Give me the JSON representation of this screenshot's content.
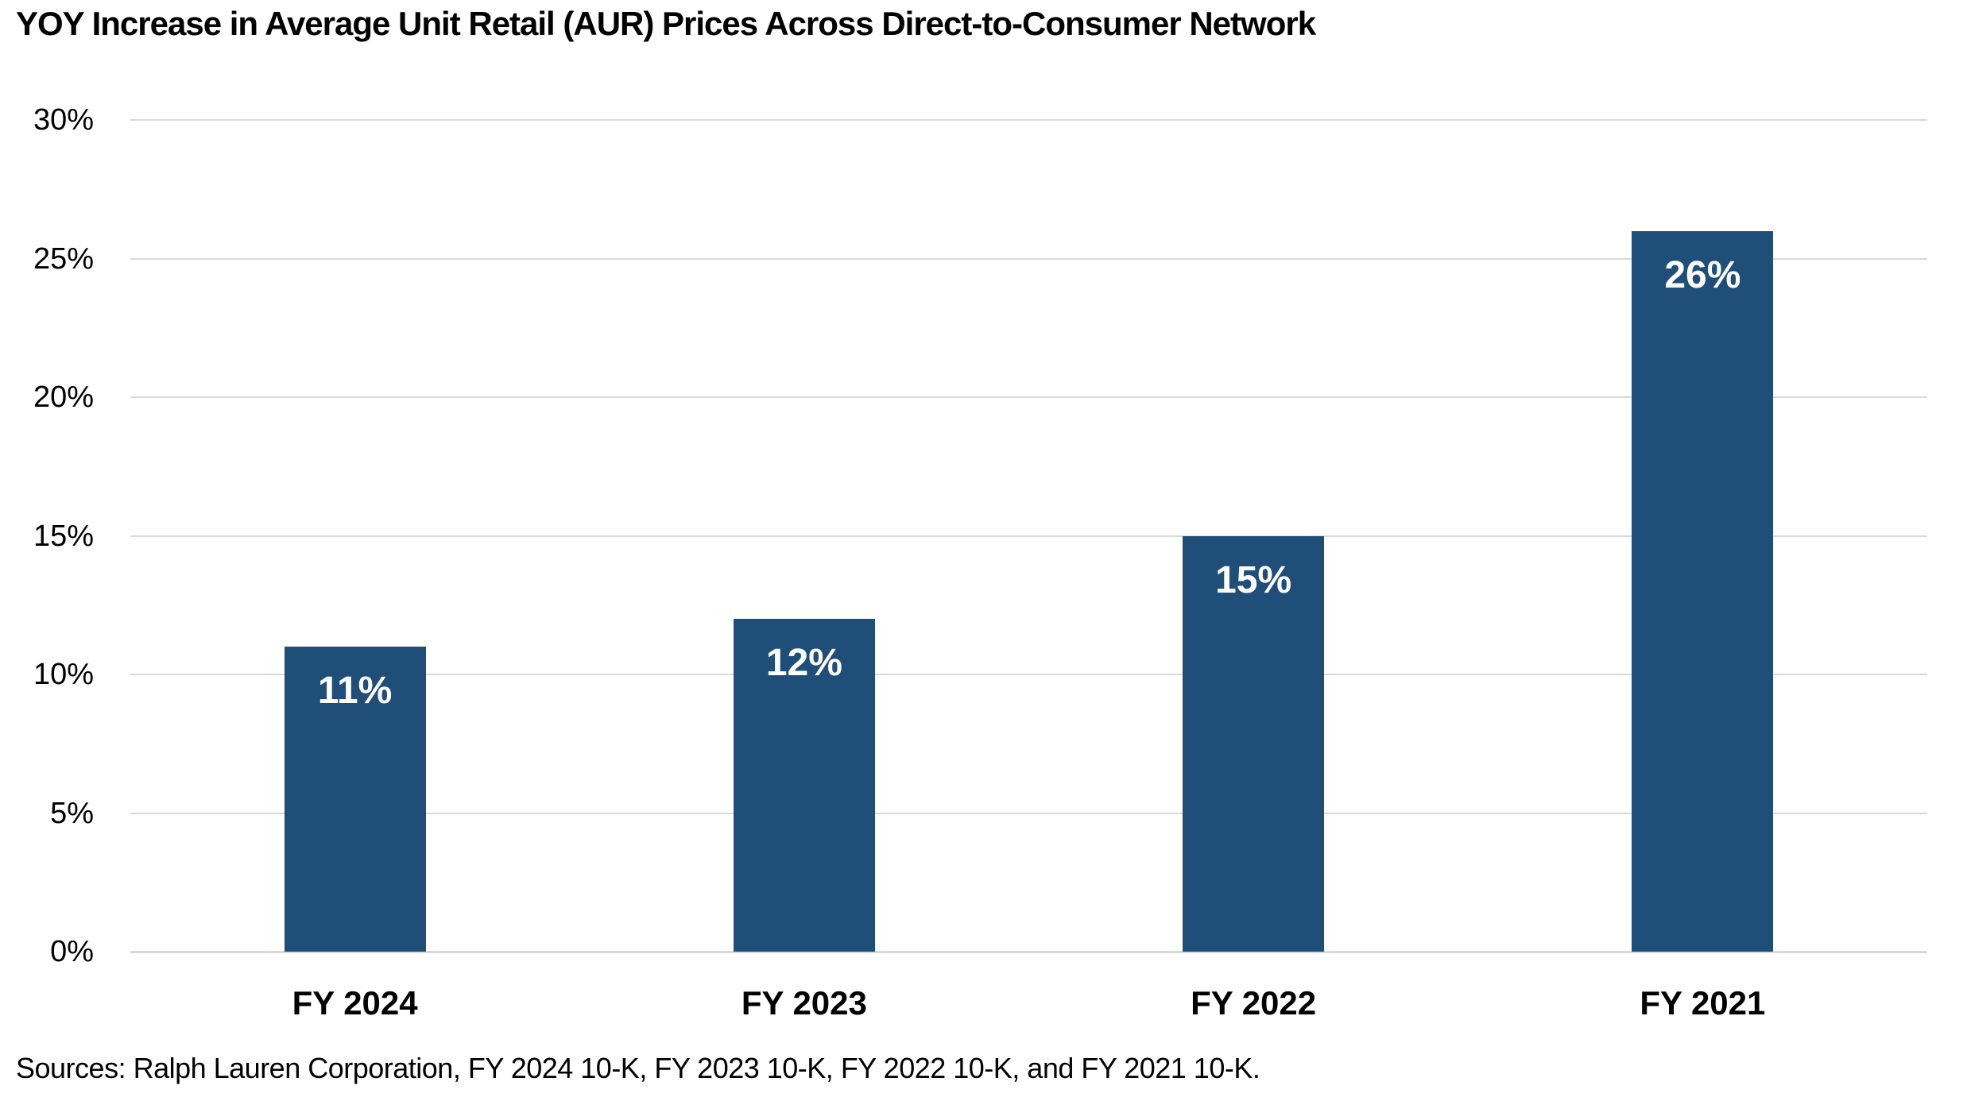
{
  "title": "YOY Increase in Average Unit Retail (AUR) Prices Across Direct-to-Consumer Network",
  "source_note": "Sources: Ralph Lauren Corporation, FY 2024 10-K, FY 2023 10-K, FY 2022 10-K, and FY 2021 10-K.",
  "chart_data": {
    "type": "bar",
    "title": "YOY Increase in Average Unit Retail (AUR) Prices Across Direct-to-Consumer Network",
    "categories": [
      "FY 2024",
      "FY 2023",
      "FY 2022",
      "FY 2021"
    ],
    "values": [
      11,
      12,
      15,
      26
    ],
    "data_labels": [
      "11%",
      "12%",
      "15%",
      "26%"
    ],
    "xlabel": "",
    "ylabel": "",
    "ylim": [
      0,
      30
    ],
    "yticks": [
      0,
      5,
      10,
      15,
      20,
      25,
      30
    ],
    "ytick_labels": [
      "0%",
      "5%",
      "10%",
      "15%",
      "20%",
      "25%",
      "30%"
    ],
    "grid": true,
    "legend": false,
    "data_label_position": "inside-top",
    "bar_color": "#1F4E79",
    "data_label_color": "#FFFFFF",
    "gridline_color": "#D9D9D9",
    "axis_line_color": "#D9D9D9",
    "text_color": "#000000",
    "background_color": "#FFFFFF",
    "source": "Sources: Ralph Lauren Corporation, FY 2024 10-K, FY 2023 10-K, FY 2022 10-K, and FY 2021 10-K."
  }
}
